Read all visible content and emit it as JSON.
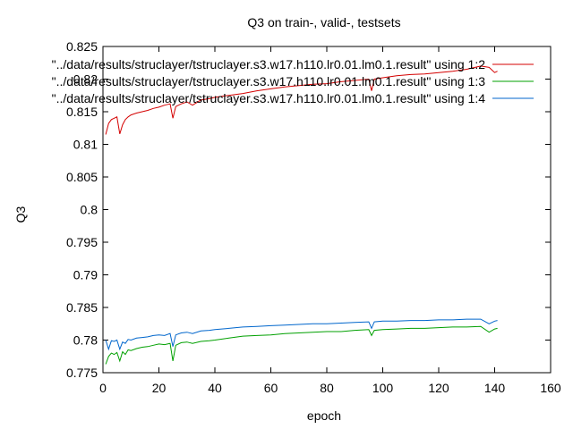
{
  "chart_data": {
    "type": "line",
    "title": "Q3 on train-, valid-, testsets",
    "xlabel": "epoch",
    "ylabel": "Q3",
    "xlim": [
      0,
      160
    ],
    "ylim": [
      0.775,
      0.825
    ],
    "xticks": [
      "0",
      "20",
      "40",
      "60",
      "80",
      "100",
      "120",
      "140",
      "160"
    ],
    "yticks": [
      "0.775",
      "0.78",
      "0.785",
      "0.79",
      "0.795",
      "0.8",
      "0.805",
      "0.81",
      "0.815",
      "0.82",
      "0.825"
    ],
    "grid": false,
    "legend_position": "top-right",
    "series": [
      {
        "name": "\"../data/results/struclayer/tstruclayer.s3.w17.h110.lr0.01.lm0.1.result\" using 1:2",
        "color": "#d40000",
        "x": [
          1,
          2,
          3,
          4,
          5,
          6,
          7,
          8,
          9,
          10,
          12,
          14,
          16,
          18,
          20,
          22,
          24,
          25,
          26,
          28,
          30,
          32,
          35,
          38,
          40,
          45,
          50,
          55,
          60,
          65,
          70,
          75,
          80,
          85,
          90,
          95,
          96,
          97,
          100,
          105,
          110,
          115,
          120,
          125,
          130,
          135,
          138,
          140,
          141
        ],
        "y": [
          0.8115,
          0.8132,
          0.8138,
          0.814,
          0.8142,
          0.8116,
          0.813,
          0.8138,
          0.8142,
          0.8145,
          0.8148,
          0.815,
          0.8152,
          0.8155,
          0.8157,
          0.816,
          0.8162,
          0.814,
          0.8158,
          0.8162,
          0.8165,
          0.816,
          0.8168,
          0.817,
          0.8172,
          0.8175,
          0.8178,
          0.8182,
          0.8185,
          0.8188,
          0.819,
          0.8192,
          0.8193,
          0.8196,
          0.8198,
          0.82,
          0.8182,
          0.82,
          0.8202,
          0.8205,
          0.8207,
          0.8208,
          0.821,
          0.8212,
          0.8215,
          0.822,
          0.8218,
          0.821,
          0.8212
        ]
      },
      {
        "name": "\"../data/results/struclayer/tstruclayer.s3.w17.h110.lr0.01.lm0.1.result\" using 1:3",
        "color": "#00a000",
        "x": [
          1,
          2,
          3,
          4,
          5,
          6,
          7,
          8,
          9,
          10,
          12,
          14,
          16,
          18,
          20,
          22,
          24,
          25,
          26,
          28,
          30,
          32,
          35,
          38,
          40,
          45,
          50,
          55,
          60,
          65,
          70,
          75,
          80,
          85,
          90,
          95,
          96,
          97,
          100,
          105,
          110,
          115,
          120,
          125,
          130,
          135,
          138,
          140,
          141
        ],
        "y": [
          0.7763,
          0.7775,
          0.778,
          0.7778,
          0.7781,
          0.7768,
          0.7782,
          0.7778,
          0.7785,
          0.7784,
          0.7787,
          0.7789,
          0.779,
          0.7792,
          0.7794,
          0.7793,
          0.7795,
          0.7768,
          0.7792,
          0.7796,
          0.7797,
          0.7795,
          0.7798,
          0.7799,
          0.78,
          0.7803,
          0.7806,
          0.7807,
          0.7808,
          0.781,
          0.7811,
          0.7812,
          0.7813,
          0.7813,
          0.7815,
          0.7816,
          0.7807,
          0.7815,
          0.7816,
          0.7817,
          0.7818,
          0.7818,
          0.7819,
          0.782,
          0.782,
          0.7821,
          0.7812,
          0.7817,
          0.7818
        ]
      },
      {
        "name": "\"../data/results/struclayer/tstruclayer.s3.w17.h110.lr0.01.lm0.1.result\" using 1:4",
        "color": "#0066cc",
        "x": [
          1,
          2,
          3,
          4,
          5,
          6,
          7,
          8,
          9,
          10,
          12,
          14,
          16,
          18,
          20,
          22,
          24,
          25,
          26,
          28,
          30,
          32,
          35,
          38,
          40,
          45,
          50,
          55,
          60,
          65,
          70,
          75,
          80,
          85,
          90,
          95,
          96,
          97,
          100,
          105,
          110,
          115,
          120,
          125,
          130,
          135,
          138,
          140,
          141
        ],
        "y": [
          0.78,
          0.7786,
          0.7799,
          0.7798,
          0.78,
          0.7786,
          0.7797,
          0.7795,
          0.7801,
          0.78,
          0.7803,
          0.7804,
          0.7805,
          0.7807,
          0.7808,
          0.7807,
          0.781,
          0.779,
          0.7808,
          0.7811,
          0.7812,
          0.781,
          0.7814,
          0.7815,
          0.7816,
          0.7818,
          0.782,
          0.7821,
          0.7822,
          0.7823,
          0.7824,
          0.7825,
          0.7825,
          0.7826,
          0.7827,
          0.7828,
          0.7818,
          0.7828,
          0.7829,
          0.7829,
          0.783,
          0.783,
          0.7831,
          0.7831,
          0.7832,
          0.7832,
          0.7825,
          0.7829,
          0.783
        ]
      }
    ]
  }
}
